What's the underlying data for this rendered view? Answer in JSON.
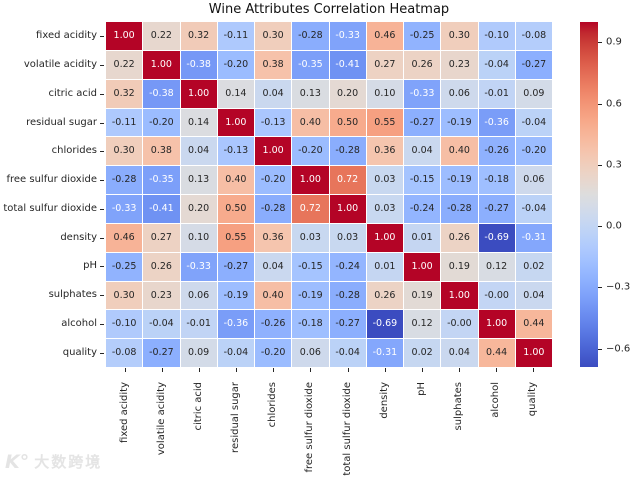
{
  "title": "Wine Attributes Correlation Heatmap",
  "chart_data": {
    "type": "heatmap",
    "title": "Wine Attributes Correlation Heatmap",
    "labels": [
      "fixed acidity",
      "volatile acidity",
      "citric acid",
      "residual sugar",
      "chlorides",
      "free sulfur dioxide",
      "total sulfur dioxide",
      "density",
      "pH",
      "sulphates",
      "alcohol",
      "quality"
    ],
    "matrix": [
      [
        "1.00",
        "0.22",
        "0.32",
        "-0.11",
        "0.30",
        "-0.28",
        "-0.33",
        "0.46",
        "-0.25",
        "0.30",
        "-0.10",
        "-0.08"
      ],
      [
        "0.22",
        "1.00",
        "-0.38",
        "-0.20",
        "0.38",
        "-0.35",
        "-0.41",
        "0.27",
        "0.26",
        "0.23",
        "-0.04",
        "-0.27"
      ],
      [
        "0.32",
        "-0.38",
        "1.00",
        "0.14",
        "0.04",
        "0.13",
        "0.20",
        "0.10",
        "-0.33",
        "0.06",
        "-0.01",
        "0.09"
      ],
      [
        "-0.11",
        "-0.20",
        "0.14",
        "1.00",
        "-0.13",
        "0.40",
        "0.50",
        "0.55",
        "-0.27",
        "-0.19",
        "-0.36",
        "-0.04"
      ],
      [
        "0.30",
        "0.38",
        "0.04",
        "-0.13",
        "1.00",
        "-0.20",
        "-0.28",
        "0.36",
        "0.04",
        "0.40",
        "-0.26",
        "-0.20"
      ],
      [
        "-0.28",
        "-0.35",
        "0.13",
        "0.40",
        "-0.20",
        "1.00",
        "0.72",
        "0.03",
        "-0.15",
        "-0.19",
        "-0.18",
        "0.06"
      ],
      [
        "-0.33",
        "-0.41",
        "0.20",
        "0.50",
        "-0.28",
        "0.72",
        "1.00",
        "0.03",
        "-0.24",
        "-0.28",
        "-0.27",
        "-0.04"
      ],
      [
        "0.46",
        "0.27",
        "0.10",
        "0.55",
        "0.36",
        "0.03",
        "0.03",
        "1.00",
        "0.01",
        "0.26",
        "-0.69",
        "-0.31"
      ],
      [
        "-0.25",
        "0.26",
        "-0.33",
        "-0.27",
        "0.04",
        "-0.15",
        "-0.24",
        "0.01",
        "1.00",
        "0.19",
        "0.12",
        "0.02"
      ],
      [
        "0.30",
        "0.23",
        "0.06",
        "-0.19",
        "0.40",
        "-0.19",
        "-0.28",
        "0.26",
        "0.19",
        "1.00",
        "-0.00",
        "0.04"
      ],
      [
        "-0.10",
        "-0.04",
        "-0.01",
        "-0.36",
        "-0.26",
        "-0.18",
        "-0.27",
        "-0.69",
        "0.12",
        "-0.00",
        "1.00",
        "0.44"
      ],
      [
        "-0.08",
        "-0.27",
        "0.09",
        "-0.04",
        "-0.20",
        "0.06",
        "-0.04",
        "-0.31",
        "0.02",
        "0.04",
        "0.44",
        "1.00"
      ]
    ],
    "vmin": -0.69,
    "vmax": 1.0,
    "colormap": "coolwarm",
    "colorbar_position": "right",
    "colorbar_ticks": [
      {
        "value": 0.9,
        "label": "0.9"
      },
      {
        "value": 0.6,
        "label": "0.6"
      },
      {
        "value": 0.3,
        "label": "0.3"
      },
      {
        "value": 0.0,
        "label": "0.0"
      },
      {
        "value": -0.3,
        "label": "−0.3"
      },
      {
        "value": -0.6,
        "label": "−0.6"
      }
    ],
    "grid": false,
    "annotated": true
  },
  "colors": {
    "annot_dark": "#262626",
    "annot_light": "#ffffff",
    "axis_text": "#262626",
    "background": "#ffffff",
    "max_red": "#b40426",
    "mid_gray": "#dddddd",
    "min_blue": "#3b4cc0"
  },
  "watermark": {
    "logo": "K°",
    "text": "大数跨境"
  }
}
